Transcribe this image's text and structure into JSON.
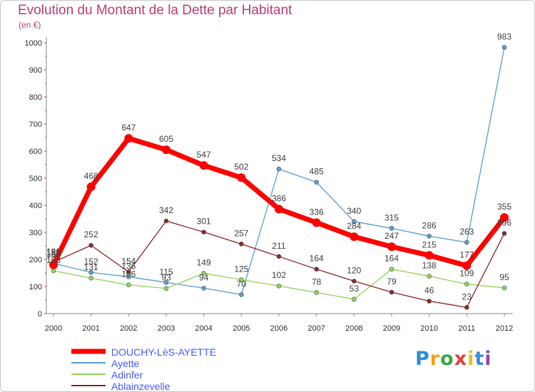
{
  "chart_data": {
    "type": "line",
    "title": "Evolution du Montant de la Dette par Habitant",
    "subtitle": "(en €)",
    "xlabel": "",
    "ylabel": "",
    "ylim": [
      0,
      1000
    ],
    "yticks": [
      "0",
      "100",
      "200",
      "300",
      "400",
      "500",
      "600",
      "700",
      "800",
      "900",
      "1000"
    ],
    "categories": [
      "2000",
      "2001",
      "2002",
      "2003",
      "2004",
      "2005",
      "2006",
      "2007",
      "2008",
      "2009",
      "2010",
      "2011",
      "2012"
    ],
    "series": [
      {
        "name": "DOUCHY-LèS-AYETTE",
        "color": "#ff0000",
        "width": 7,
        "values": [
          180,
          468,
          647,
          605,
          547,
          502,
          386,
          336,
          284,
          247,
          215,
          177,
          355
        ]
      },
      {
        "name": "Ayette",
        "color": "#5b9fd4",
        "width": 1.3,
        "values": [
          186,
          152,
          136,
          115,
          94,
          70,
          534,
          485,
          340,
          315,
          286,
          263,
          983
        ]
      },
      {
        "name": "Adinfer",
        "color": "#8fd45b",
        "width": 1.3,
        "values": [
          158,
          131,
          106,
          93,
          149,
          125,
          102,
          78,
          53,
          164,
          138,
          109,
          95
        ]
      },
      {
        "name": "Ablainzevelle",
        "color": "#8b2a2a",
        "width": 1.3,
        "values": [
          190,
          252,
          154,
          342,
          301,
          257,
          211,
          164,
          120,
          79,
          46,
          23,
          296
        ]
      }
    ],
    "legend_position": "bottom-left",
    "grid": false
  },
  "brand": {
    "letters": [
      "P",
      "r",
      "o",
      "x",
      "i",
      "t",
      "i"
    ],
    "colors": [
      "#2a8fd4",
      "#f0a020",
      "#3aa84a",
      "#e04040",
      "#f0c020",
      "#3a8fd4",
      "#8a4ab0"
    ]
  }
}
